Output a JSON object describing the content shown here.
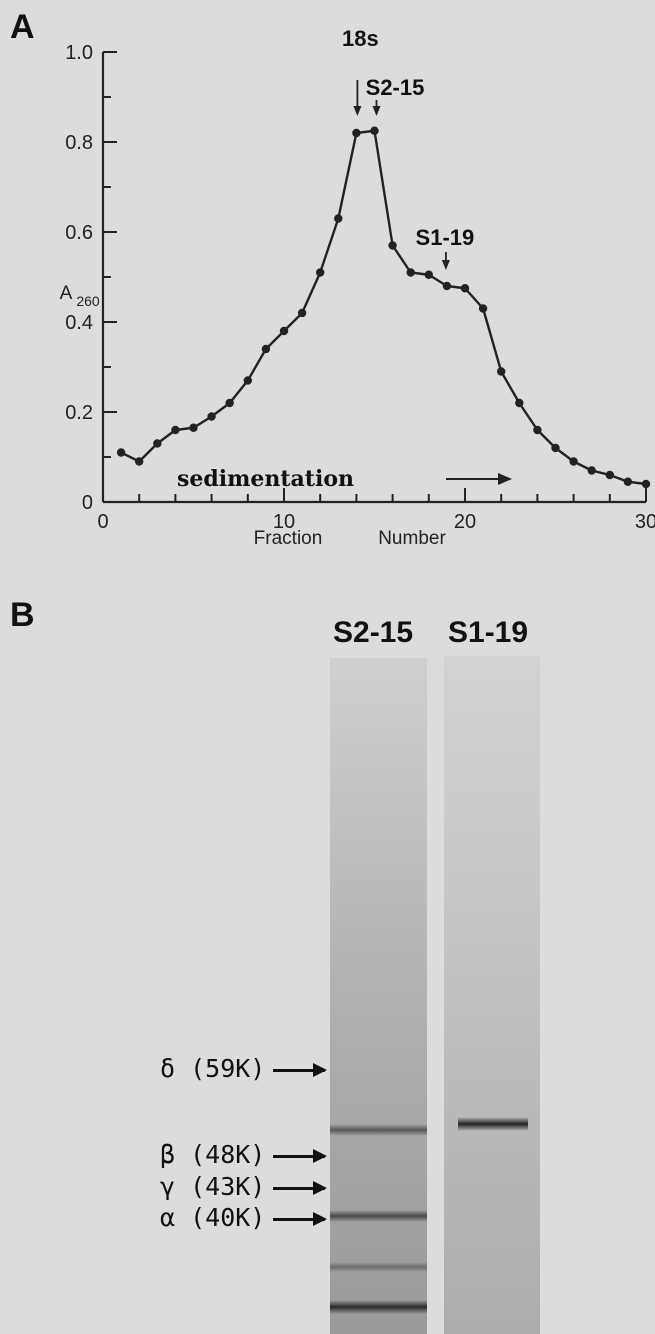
{
  "chart_data": {
    "type": "line",
    "panel_label": "A",
    "ylabel": "A260",
    "ylabel_main": "A",
    "ylabel_sub": "260",
    "xlabel_left": "Fraction",
    "xlabel_right": "Number",
    "xlim": [
      0,
      30
    ],
    "ylim": [
      0,
      1.0
    ],
    "xticks": [
      0,
      10,
      20,
      30
    ],
    "xtick_labels": [
      "0",
      "10",
      "20",
      "30"
    ],
    "yticks": [
      0,
      0.2,
      0.4,
      0.6,
      0.8,
      1.0
    ],
    "ytick_labels": [
      "0",
      "0.2",
      "0.4",
      "0.6",
      "0.8",
      "1.0"
    ],
    "grid": false,
    "series": [
      {
        "x": [
          1,
          2,
          3,
          4,
          5,
          6,
          7,
          8,
          9,
          10,
          11,
          12,
          13,
          14,
          15,
          16,
          17,
          18,
          19,
          20,
          21,
          22,
          23,
          24,
          25,
          26,
          27,
          28,
          29,
          30
        ],
        "y": [
          0.11,
          0.09,
          0.13,
          0.16,
          0.165,
          0.19,
          0.22,
          0.27,
          0.34,
          0.38,
          0.42,
          0.51,
          0.63,
          0.82,
          0.825,
          0.57,
          0.51,
          0.505,
          0.48,
          0.475,
          0.43,
          0.29,
          0.22,
          0.16,
          0.12,
          0.09,
          0.07,
          0.06,
          0.045,
          0.04
        ]
      }
    ],
    "annotations": [
      {
        "text": "18s",
        "x": 14
      },
      {
        "text": "S2-15",
        "x": 15
      },
      {
        "text": "S1-19",
        "x": 19
      }
    ],
    "arrow_label": "sedimentation"
  },
  "gel": {
    "panel_label": "B",
    "lanes": [
      {
        "label": "S2-15"
      },
      {
        "label": "S1-19"
      }
    ],
    "markers": [
      {
        "label": "δ (59K)"
      },
      {
        "label": "β (48K)"
      },
      {
        "label": "γ (43K)"
      },
      {
        "label": "α (40K)"
      }
    ]
  }
}
